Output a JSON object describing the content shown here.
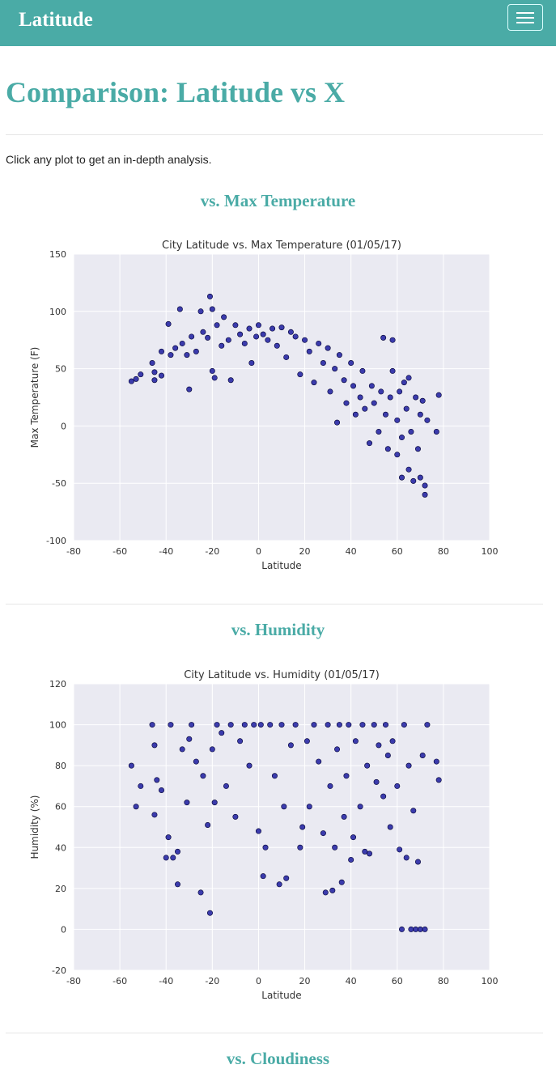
{
  "header": {
    "brand": "Latitude"
  },
  "heading": "Comparison: Latitude vs X",
  "intro": "Click any plot to get an in-depth analysis.",
  "sections": [
    {
      "heading": "vs. Max Temperature"
    },
    {
      "heading": "vs. Humidity"
    },
    {
      "heading": "vs. Cloudiness"
    }
  ],
  "chart_data": [
    {
      "type": "scatter",
      "title": "City Latitude vs. Max Temperature (01/05/17)",
      "xlabel": "Latitude",
      "ylabel": "Max Temperature (F)",
      "xlim": [
        -80,
        100
      ],
      "xticks": [
        -80,
        -60,
        -40,
        -20,
        0,
        20,
        40,
        60,
        80,
        100
      ],
      "ylim": [
        -100,
        150
      ],
      "yticks": [
        -100,
        -50,
        0,
        50,
        100,
        150
      ],
      "grid": true,
      "series": [
        {
          "color": "#1c1ca0",
          "x": [
            -55,
            -53,
            -51,
            -46,
            -45,
            -45,
            -42,
            -42,
            -39,
            -38,
            -36,
            -34,
            -33,
            -31,
            -30,
            -29,
            -27,
            -25,
            -24,
            -22,
            -21,
            -20,
            -20,
            -19,
            -18,
            -16,
            -15,
            -13,
            -12,
            -10,
            -8,
            -6,
            -4,
            -3,
            -1,
            0,
            2,
            4,
            6,
            8,
            10,
            12,
            14,
            16,
            18,
            20,
            22,
            24,
            26,
            28,
            30,
            31,
            33,
            34,
            35,
            37,
            38,
            40,
            41,
            42,
            44,
            45,
            46,
            48,
            49,
            50,
            52,
            53,
            54,
            55,
            56,
            57,
            58,
            58,
            60,
            60,
            61,
            62,
            62,
            63,
            64,
            65,
            65,
            66,
            67,
            68,
            69,
            70,
            70,
            71,
            72,
            72,
            73,
            77,
            78
          ],
          "values": [
            39,
            41,
            45,
            55,
            47,
            40,
            44,
            65,
            89,
            62,
            68,
            102,
            72,
            62,
            32,
            78,
            65,
            100,
            82,
            77,
            113,
            102,
            48,
            42,
            88,
            70,
            95,
            75,
            40,
            88,
            80,
            72,
            85,
            55,
            78,
            88,
            80,
            75,
            85,
            70,
            86,
            60,
            82,
            78,
            45,
            75,
            65,
            38,
            72,
            55,
            68,
            30,
            50,
            3,
            62,
            40,
            20,
            55,
            35,
            10,
            25,
            48,
            15,
            -15,
            35,
            20,
            -5,
            30,
            77,
            10,
            -20,
            25,
            75,
            48,
            -25,
            5,
            30,
            -45,
            -10,
            38,
            15,
            -38,
            42,
            -5,
            -48,
            25,
            -20,
            10,
            -45,
            22,
            -60,
            -52,
            5,
            -5,
            27
          ]
        }
      ]
    },
    {
      "type": "scatter",
      "title": "City Latitude vs. Humidity (01/05/17)",
      "xlabel": "Latitude",
      "ylabel": "Humidity (%)",
      "xlim": [
        -80,
        100
      ],
      "xticks": [
        -80,
        -60,
        -40,
        -20,
        0,
        20,
        40,
        60,
        80,
        100
      ],
      "ylim": [
        -20,
        120
      ],
      "yticks": [
        -20,
        0,
        20,
        40,
        60,
        80,
        100,
        120
      ],
      "grid": true,
      "series": [
        {
          "color": "#1c1ca0",
          "x": [
            -55,
            -53,
            -51,
            -46,
            -45,
            -45,
            -44,
            -42,
            -40,
            -39,
            -38,
            -37,
            -35,
            -35,
            -33,
            -31,
            -30,
            -29,
            -27,
            -25,
            -24,
            -22,
            -21,
            -20,
            -19,
            -18,
            -16,
            -14,
            -12,
            -10,
            -8,
            -6,
            -4,
            -2,
            0,
            1,
            2,
            3,
            5,
            7,
            9,
            10,
            11,
            12,
            14,
            16,
            18,
            19,
            21,
            22,
            24,
            26,
            28,
            29,
            30,
            31,
            32,
            33,
            34,
            35,
            36,
            37,
            38,
            39,
            40,
            41,
            42,
            44,
            45,
            46,
            47,
            48,
            50,
            51,
            52,
            54,
            55,
            56,
            57,
            58,
            60,
            61,
            62,
            63,
            64,
            65,
            66,
            67,
            68,
            69,
            70,
            71,
            72,
            73,
            77,
            78
          ],
          "values": [
            80,
            60,
            70,
            100,
            90,
            56,
            73,
            68,
            35,
            45,
            100,
            35,
            22,
            38,
            88,
            62,
            93,
            100,
            82,
            18,
            75,
            51,
            8,
            88,
            62,
            100,
            96,
            70,
            100,
            55,
            92,
            100,
            80,
            100,
            48,
            100,
            26,
            40,
            100,
            75,
            22,
            100,
            60,
            25,
            90,
            100,
            40,
            50,
            92,
            60,
            100,
            82,
            47,
            18,
            100,
            70,
            19,
            40,
            88,
            100,
            23,
            55,
            75,
            100,
            34,
            45,
            92,
            60,
            100,
            38,
            80,
            37,
            100,
            72,
            90,
            65,
            100,
            85,
            50,
            92,
            70,
            39,
            0,
            100,
            35,
            80,
            0,
            58,
            0,
            33,
            0,
            85,
            0,
            100,
            82,
            73
          ]
        }
      ]
    }
  ]
}
